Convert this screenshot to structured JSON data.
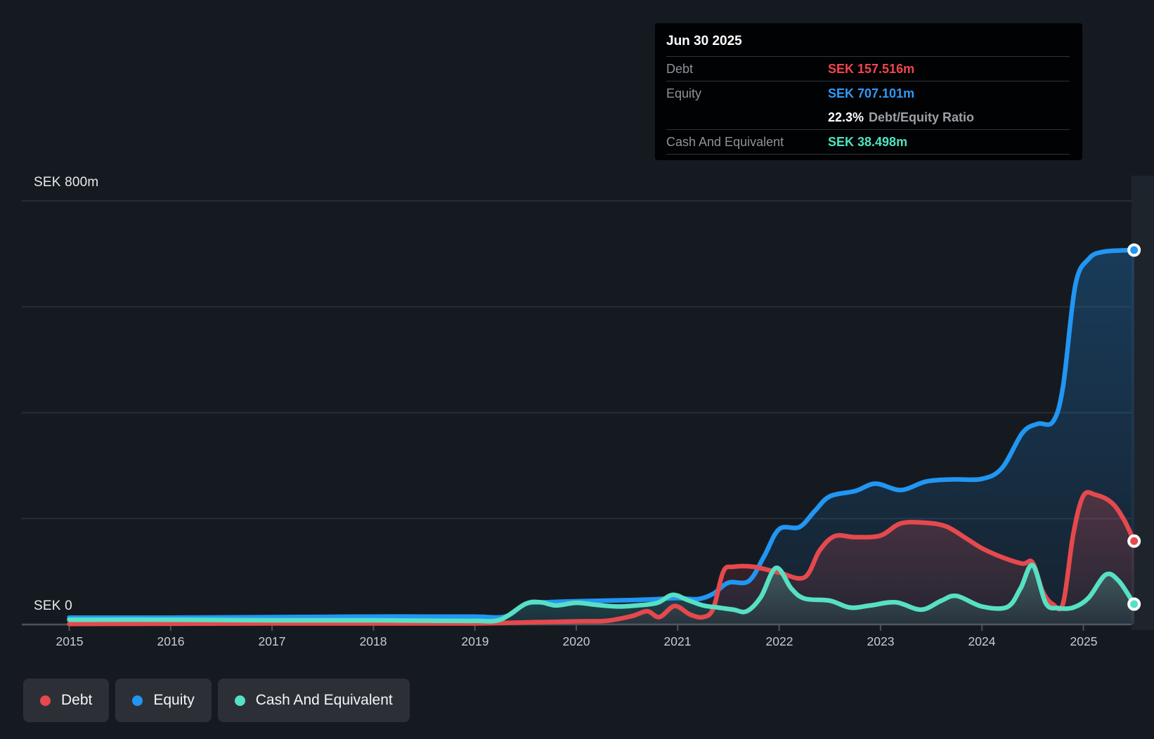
{
  "background": "#151a21",
  "tooltip": {
    "date": "Jun 30 2025",
    "rows": [
      {
        "label": "Debt",
        "value": "SEK 157.516m",
        "color": "#f0464b"
      },
      {
        "label": "Equity",
        "value": "SEK 707.101m",
        "color": "#2f9bf5"
      },
      {
        "label": "Cash And Equivalent",
        "value": "SEK 38.498m",
        "color": "#4fe3c2"
      }
    ],
    "ratio": {
      "value": "22.3%",
      "label": "Debt/Equity Ratio"
    }
  },
  "y_axis": {
    "top": "SEK 800m",
    "zero": "SEK 0"
  },
  "x_axis": {
    "years": [
      "2015",
      "2016",
      "2017",
      "2018",
      "2019",
      "2020",
      "2021",
      "2022",
      "2023",
      "2024",
      "2025"
    ]
  },
  "legend": {
    "items": [
      {
        "label": "Debt",
        "color": "#e5494d"
      },
      {
        "label": "Equity",
        "color": "#2196f3"
      },
      {
        "label": "Cash And Equivalent",
        "color": "#57e0c4"
      }
    ]
  },
  "chart_data": {
    "type": "area",
    "unit": "SEK millions",
    "x_range": [
      2015,
      2025.5
    ],
    "ylim": [
      0,
      800
    ],
    "grid": true,
    "gridlines_m": [
      800,
      600,
      400,
      200,
      0
    ],
    "legend_position": "bottom-left",
    "hover_point": {
      "date": "Jun 30 2025",
      "x": 2025.5
    },
    "series": [
      {
        "name": "Equity",
        "color": "#2196f3",
        "points": [
          [
            2015,
            13
          ],
          [
            2015.5,
            13
          ],
          [
            2016,
            13
          ],
          [
            2016.5,
            13.5
          ],
          [
            2017,
            14
          ],
          [
            2017.5,
            14.5
          ],
          [
            2018,
            15
          ],
          [
            2018.5,
            15
          ],
          [
            2019,
            15
          ],
          [
            2019.3,
            15
          ],
          [
            2019.5,
            39
          ],
          [
            2019.7,
            42
          ],
          [
            2020,
            44
          ],
          [
            2020.5,
            46
          ],
          [
            2020.8,
            48
          ],
          [
            2021,
            50
          ],
          [
            2021.2,
            48
          ],
          [
            2021.35,
            58
          ],
          [
            2021.5,
            79
          ],
          [
            2021.7,
            82
          ],
          [
            2021.85,
            128
          ],
          [
            2022,
            180
          ],
          [
            2022.2,
            184
          ],
          [
            2022.35,
            214
          ],
          [
            2022.5,
            242
          ],
          [
            2022.75,
            252
          ],
          [
            2022.95,
            266
          ],
          [
            2023.2,
            254
          ],
          [
            2023.45,
            270
          ],
          [
            2023.7,
            274
          ],
          [
            2024,
            275
          ],
          [
            2024.2,
            296
          ],
          [
            2024.4,
            362
          ],
          [
            2024.55,
            379
          ],
          [
            2024.7,
            383
          ],
          [
            2024.8,
            450
          ],
          [
            2024.92,
            640
          ],
          [
            2025.05,
            690
          ],
          [
            2025.2,
            704
          ],
          [
            2025.5,
            707.1
          ]
        ]
      },
      {
        "name": "Debt",
        "color": "#e5494d",
        "points": [
          [
            2015,
            1
          ],
          [
            2016,
            1.5
          ],
          [
            2017,
            2
          ],
          [
            2018,
            2
          ],
          [
            2019,
            2
          ],
          [
            2019.5,
            4
          ],
          [
            2020,
            6
          ],
          [
            2020.3,
            7
          ],
          [
            2020.55,
            16
          ],
          [
            2020.7,
            25
          ],
          [
            2020.82,
            14
          ],
          [
            2020.97,
            35
          ],
          [
            2021.12,
            19
          ],
          [
            2021.25,
            14
          ],
          [
            2021.35,
            30
          ],
          [
            2021.45,
            100
          ],
          [
            2021.55,
            109
          ],
          [
            2021.75,
            109
          ],
          [
            2022,
            98
          ],
          [
            2022.25,
            89
          ],
          [
            2022.4,
            140
          ],
          [
            2022.55,
            167
          ],
          [
            2022.75,
            165
          ],
          [
            2023,
            168
          ],
          [
            2023.2,
            191
          ],
          [
            2023.45,
            192
          ],
          [
            2023.65,
            185
          ],
          [
            2023.85,
            162
          ],
          [
            2024,
            144
          ],
          [
            2024.2,
            127
          ],
          [
            2024.4,
            115
          ],
          [
            2024.5,
            117
          ],
          [
            2024.6,
            62
          ],
          [
            2024.7,
            38
          ],
          [
            2024.8,
            40
          ],
          [
            2024.9,
            170
          ],
          [
            2025,
            243
          ],
          [
            2025.12,
            245
          ],
          [
            2025.28,
            230
          ],
          [
            2025.4,
            198
          ],
          [
            2025.5,
            157.5
          ]
        ]
      },
      {
        "name": "Cash And Equivalent",
        "color": "#57e0c4",
        "points": [
          [
            2015,
            9
          ],
          [
            2016,
            9
          ],
          [
            2017,
            8
          ],
          [
            2018,
            8
          ],
          [
            2018.7,
            7
          ],
          [
            2019,
            7
          ],
          [
            2019.25,
            9
          ],
          [
            2019.5,
            39
          ],
          [
            2019.65,
            42
          ],
          [
            2019.8,
            36
          ],
          [
            2020,
            41
          ],
          [
            2020.2,
            37
          ],
          [
            2020.4,
            34
          ],
          [
            2020.6,
            36
          ],
          [
            2020.8,
            41
          ],
          [
            2020.95,
            56
          ],
          [
            2021.1,
            46
          ],
          [
            2021.25,
            36
          ],
          [
            2021.4,
            32
          ],
          [
            2021.55,
            28
          ],
          [
            2021.68,
            25
          ],
          [
            2021.82,
            52
          ],
          [
            2021.97,
            107
          ],
          [
            2022.12,
            68
          ],
          [
            2022.25,
            49
          ],
          [
            2022.5,
            45
          ],
          [
            2022.7,
            32
          ],
          [
            2022.9,
            36
          ],
          [
            2023.15,
            42
          ],
          [
            2023.4,
            28
          ],
          [
            2023.6,
            45
          ],
          [
            2023.75,
            54
          ],
          [
            2024,
            34
          ],
          [
            2024.25,
            33
          ],
          [
            2024.38,
            68
          ],
          [
            2024.5,
            112
          ],
          [
            2024.63,
            40
          ],
          [
            2024.75,
            31
          ],
          [
            2024.9,
            32
          ],
          [
            2025.05,
            50
          ],
          [
            2025.22,
            94
          ],
          [
            2025.35,
            82
          ],
          [
            2025.5,
            38.5
          ]
        ]
      }
    ]
  }
}
